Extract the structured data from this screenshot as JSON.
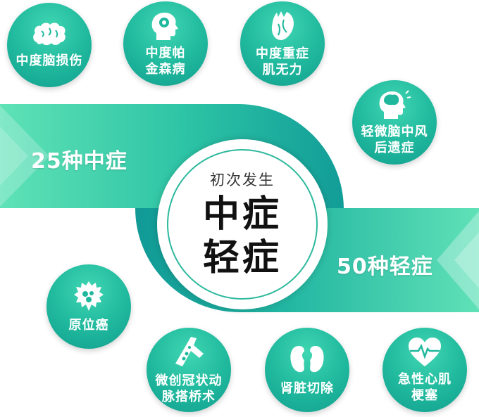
{
  "bubbles": {
    "brain_injury": "中度脑损伤",
    "parkinson_1": "中度帕",
    "parkinson_2": "金森病",
    "myasthenia_1": "中度重症",
    "myasthenia_2": "肌无力",
    "stroke_1": "轻微脑中风",
    "stroke_2": "后遗症",
    "carcinoma": "原位癌",
    "bypass_1": "微创冠状动",
    "bypass_2": "脉搭桥术",
    "kidney": "肾脏切除",
    "heart_1": "急性心肌",
    "heart_2": "梗塞"
  },
  "bands": {
    "moderate": "25种中症",
    "mild": "50种轻症"
  },
  "center": {
    "subtitle": "初次发生",
    "line1": "中症",
    "line2": "轻症"
  },
  "colors": {
    "accent": "#1fb89d",
    "band_dark": "#159e97",
    "band_light": "#5fe0b4"
  }
}
